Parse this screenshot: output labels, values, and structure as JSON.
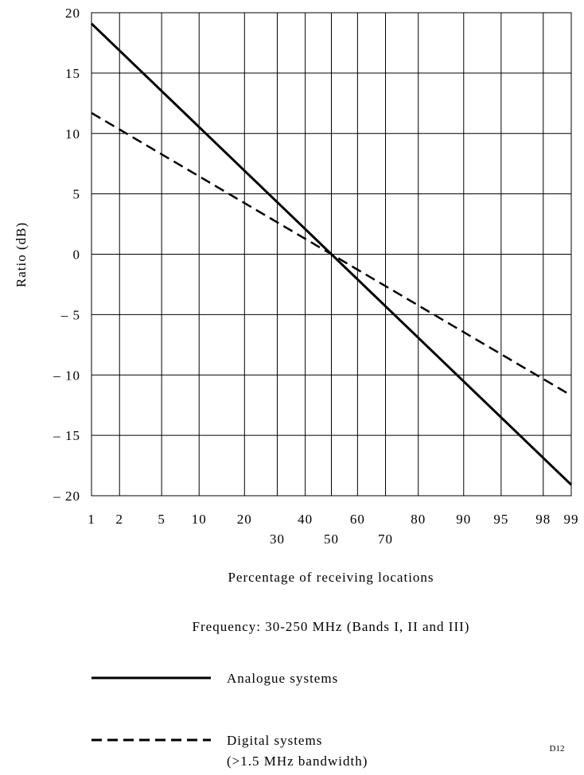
{
  "chart_data": {
    "type": "line",
    "xlabel": "Percentage of receiving locations",
    "ylabel": "Ratio (dB)",
    "subtitle": "Frequency: 30-250 MHz (Bands I, II and III)",
    "x_scale": "probability",
    "xlim": [
      1,
      99
    ],
    "ylim": [
      -20,
      20
    ],
    "grid": true,
    "x_ticks": [
      1,
      2,
      5,
      10,
      20,
      30,
      40,
      50,
      60,
      70,
      80,
      90,
      95,
      98,
      99
    ],
    "y_ticks": [
      20,
      15,
      10,
      5,
      0,
      -5,
      -10,
      -15,
      -20
    ],
    "y_tick_labels": [
      "20",
      "15",
      "10",
      "5",
      "0",
      "– 5",
      "– 10",
      "– 15",
      "– 20"
    ],
    "series": [
      {
        "name": "Analogue systems",
        "style": "solid",
        "x": [
          1,
          99
        ],
        "y": [
          19.1,
          -19.1
        ]
      },
      {
        "name": "Digital systems",
        "name_line2": "(>1.5 MHz bandwidth)",
        "style": "dashed",
        "x": [
          1,
          99
        ],
        "y": [
          11.7,
          -11.7
        ]
      }
    ],
    "legend_placement": "bottom-left",
    "figure_tag": "D12"
  }
}
